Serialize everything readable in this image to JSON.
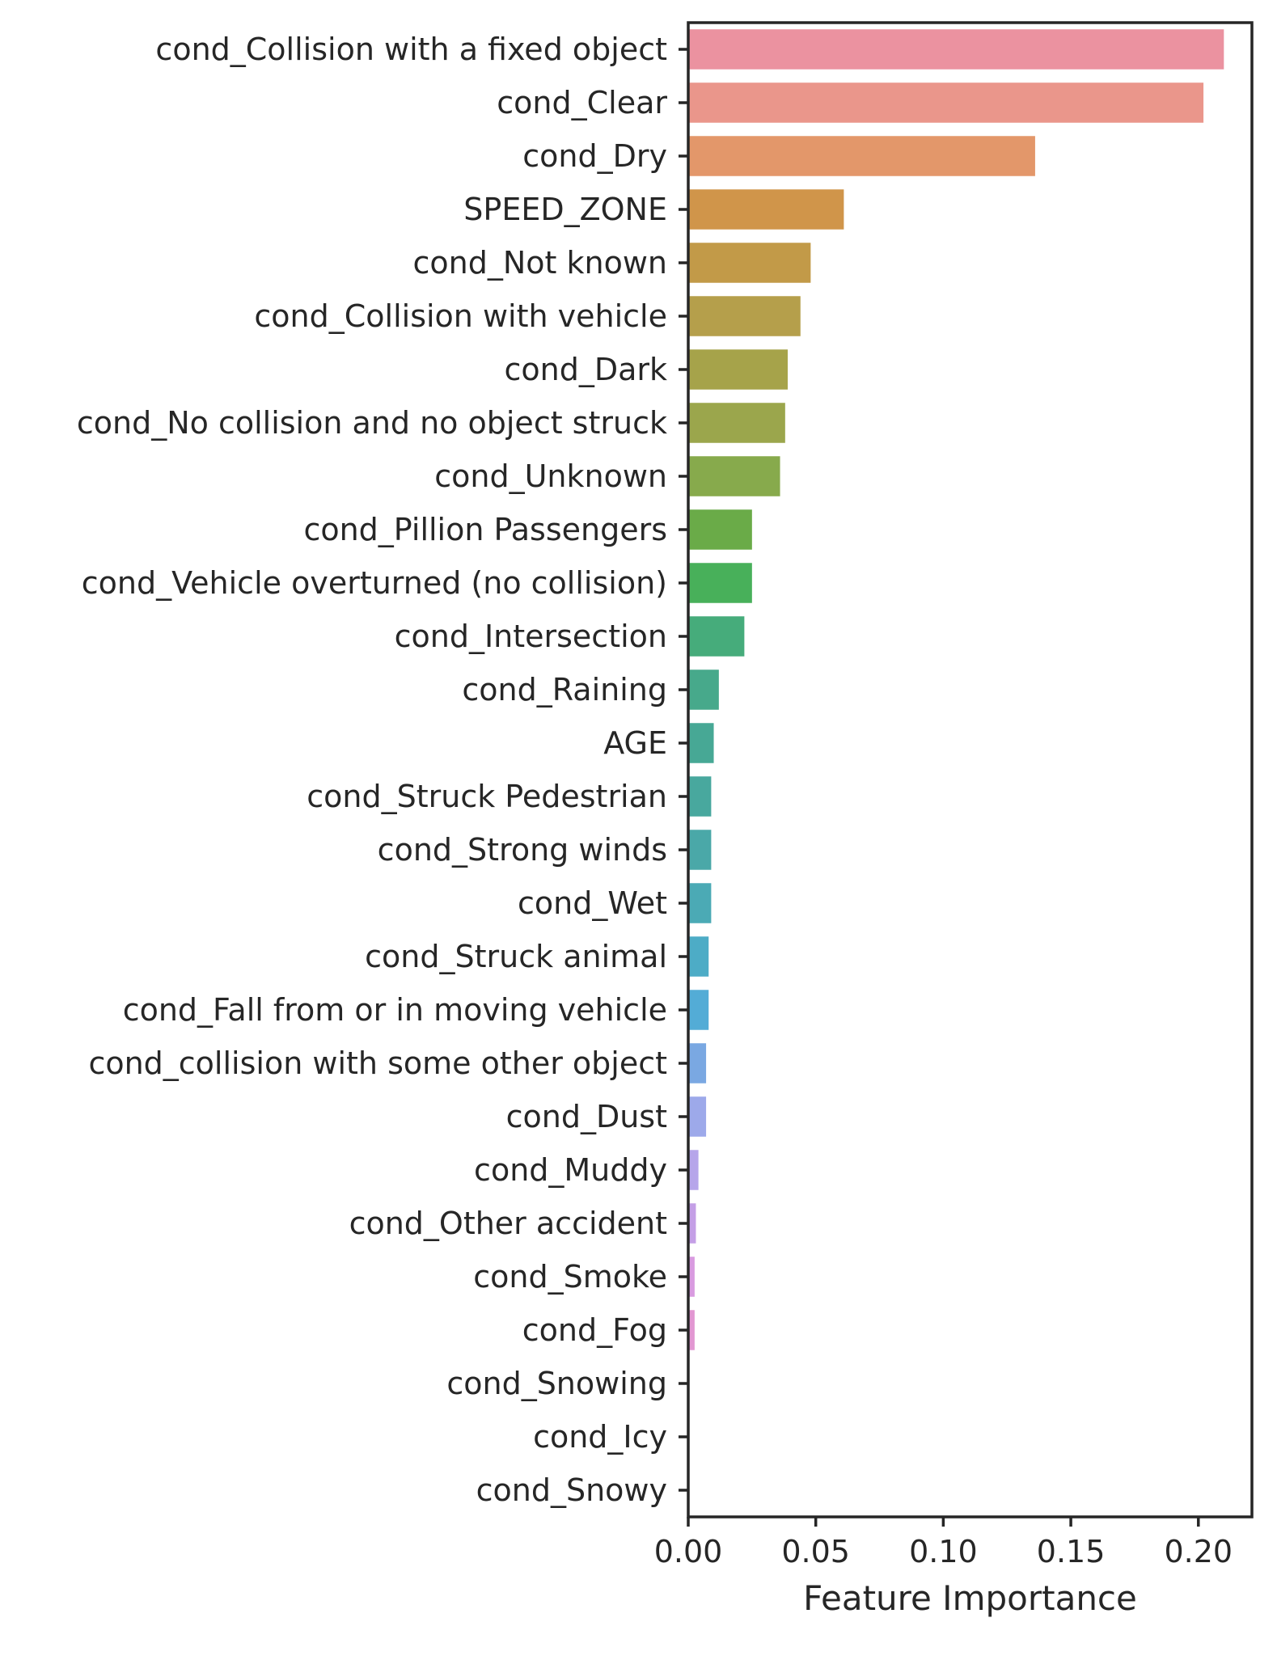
{
  "chart_data": {
    "type": "bar",
    "orientation": "horizontal",
    "title": "",
    "xlabel": "Feature Importance",
    "ylabel": "",
    "xlim": [
      0,
      0.221
    ],
    "xticks": [
      0.0,
      0.05,
      0.1,
      0.15,
      0.2
    ],
    "xtick_labels": [
      "0.00",
      "0.05",
      "0.10",
      "0.15",
      "0.20"
    ],
    "grid": false,
    "legend": "none",
    "categories": [
      "cond_Collision with a fixed object",
      "cond_Clear",
      "cond_Dry",
      "SPEED_ZONE",
      "cond_Not known",
      "cond_Collision with vehicle",
      "cond_Dark",
      "cond_No collision and no object struck",
      "cond_Unknown",
      "cond_Pillion Passengers",
      "cond_Vehicle overturned (no collision)",
      "cond_Intersection",
      "cond_Raining",
      "AGE",
      "cond_Struck Pedestrian",
      "cond_Strong winds",
      "cond_Wet",
      "cond_Struck animal",
      "cond_Fall from or in moving vehicle",
      "cond_collision with some other object",
      "cond_Dust",
      "cond_Muddy",
      "cond_Other accident",
      "cond_Smoke",
      "cond_Fog",
      "cond_Snowing",
      "cond_Icy",
      "cond_Snowy"
    ],
    "values": [
      0.21,
      0.202,
      0.136,
      0.061,
      0.048,
      0.044,
      0.039,
      0.038,
      0.036,
      0.025,
      0.025,
      0.022,
      0.012,
      0.01,
      0.009,
      0.009,
      0.009,
      0.008,
      0.008,
      0.007,
      0.007,
      0.004,
      0.003,
      0.0025,
      0.0025,
      0.0,
      0.0,
      0.0
    ],
    "colors": [
      "#eb92a0",
      "#ea968b",
      "#e3976a",
      "#d0954a",
      "#c29a48",
      "#b59f4b",
      "#a6a34a",
      "#9ba64c",
      "#87aa4c",
      "#6aab48",
      "#48b05a",
      "#46ac7b",
      "#47a98b",
      "#47a895",
      "#48a89e",
      "#4aa8a8",
      "#4baab5",
      "#4dacc6",
      "#53acd6",
      "#7aa8e2",
      "#9da9ea",
      "#b6a5ea",
      "#c49fe6",
      "#d99be0",
      "#e297d2",
      "#e496c4",
      "#e795b8",
      "#ea94ad"
    ]
  }
}
